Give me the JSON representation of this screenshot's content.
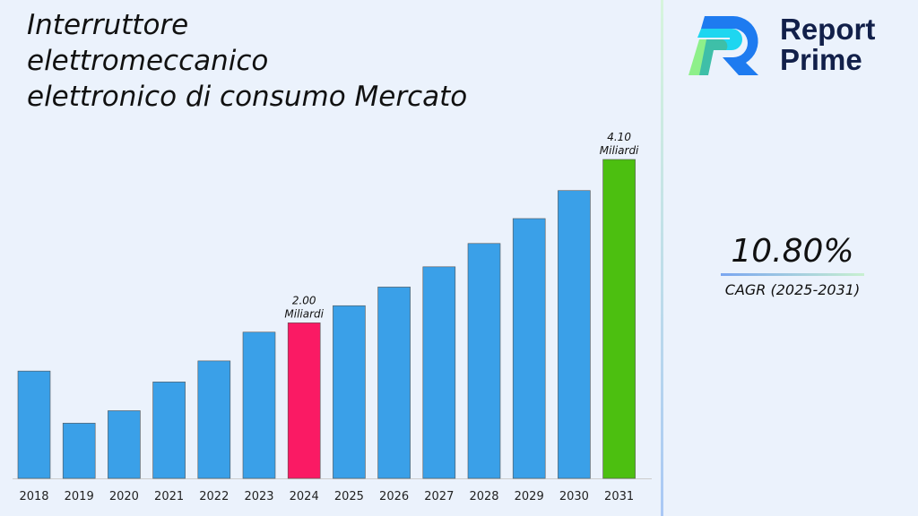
{
  "chart_data": {
    "type": "bar",
    "title": "Interruttore elettromeccanico elettronico di consumo Mercato",
    "title_lines": [
      "Interruttore",
      "elettromeccanico",
      "elettronico di consumo Mercato"
    ],
    "categories": [
      "2018",
      "2019",
      "2020",
      "2021",
      "2022",
      "2023",
      "2024",
      "2025",
      "2026",
      "2027",
      "2028",
      "2029",
      "2030",
      "2031"
    ],
    "values": [
      1.38,
      0.71,
      0.87,
      1.24,
      1.51,
      1.88,
      2.0,
      2.22,
      2.46,
      2.72,
      3.02,
      3.34,
      3.7,
      4.1
    ],
    "data_labels": {
      "6": [
        "2.00",
        "Miliardi"
      ],
      "13": [
        "4.10",
        "Miliardi"
      ]
    },
    "colors": {
      "default": "#3aa0e8",
      "highlight_2024": "#fa1a64",
      "highlight_2031": "#4cbf10"
    },
    "xlabel": "",
    "ylabel": "",
    "ylim": [
      0,
      4.1
    ],
    "grid": false
  },
  "logo": {
    "line1": "Report",
    "line2": "Prime"
  },
  "cagr": {
    "value": "10.80%",
    "label": "CAGR (2025-2031)"
  }
}
